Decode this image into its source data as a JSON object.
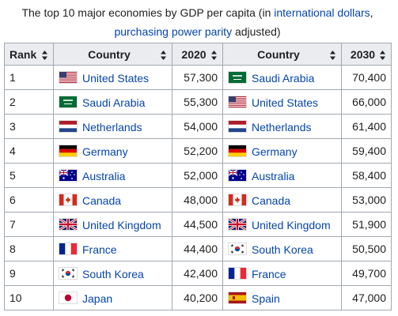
{
  "caption": [
    "The top 10 major economies by GDP per capita (in ",
    "international dollars",
    ",",
    "purchasing power parity",
    " adjusted)"
  ],
  "table": {
    "header": [
      "Rank",
      "Country",
      "2020",
      "Country",
      "2030"
    ],
    "rows": [
      [
        "1",
        "United States",
        "57,300",
        "Saudi Arabia",
        "70,400"
      ],
      [
        "2",
        "Saudi Arabia",
        "55,300",
        "United States",
        "66,000"
      ],
      [
        "3",
        "Netherlands",
        "54,000",
        "Netherlands",
        "61,400"
      ],
      [
        "4",
        "Germany",
        "52,200",
        "Germany",
        "59,400"
      ],
      [
        "5",
        "Australia",
        "52,000",
        "Australia",
        "58,400"
      ],
      [
        "6",
        "Canada",
        "48,000",
        "Canada",
        "53,000"
      ],
      [
        "7",
        "United Kingdom",
        "44,500",
        "United Kingdom",
        "51,900"
      ],
      [
        "8",
        "France",
        "44,400",
        "South Korea",
        "50,500"
      ],
      [
        "9",
        "South Korea",
        "42,400",
        "France",
        "49,700"
      ],
      [
        "10",
        "Japan",
        "40,200",
        "Spain",
        "47,000"
      ]
    ]
  }
}
